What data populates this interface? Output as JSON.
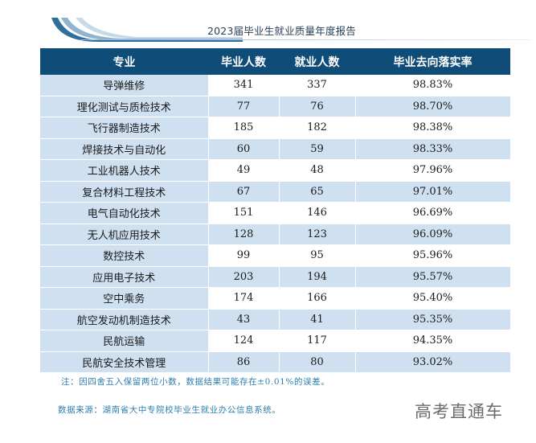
{
  "report": {
    "title": "2023届毕业生就业质量年度报告"
  },
  "table": {
    "headers": [
      "专业",
      "毕业人数",
      "就业人数",
      "毕业去向落实率"
    ],
    "rows": [
      {
        "major": "导弹维修",
        "graduates": "341",
        "employed": "337",
        "rate": "98.83%"
      },
      {
        "major": "理化测试与质检技术",
        "graduates": "77",
        "employed": "76",
        "rate": "98.70%"
      },
      {
        "major": "飞行器制造技术",
        "graduates": "185",
        "employed": "182",
        "rate": "98.38%"
      },
      {
        "major": "焊接技术与自动化",
        "graduates": "60",
        "employed": "59",
        "rate": "98.33%"
      },
      {
        "major": "工业机器人技术",
        "graduates": "49",
        "employed": "48",
        "rate": "97.96%"
      },
      {
        "major": "复合材料工程技术",
        "graduates": "67",
        "employed": "65",
        "rate": "97.01%"
      },
      {
        "major": "电气自动化技术",
        "graduates": "151",
        "employed": "146",
        "rate": "96.69%"
      },
      {
        "major": "无人机应用技术",
        "graduates": "128",
        "employed": "123",
        "rate": "96.09%"
      },
      {
        "major": "数控技术",
        "graduates": "99",
        "employed": "95",
        "rate": "95.96%"
      },
      {
        "major": "应用电子技术",
        "graduates": "203",
        "employed": "194",
        "rate": "95.57%"
      },
      {
        "major": "空中乘务",
        "graduates": "174",
        "employed": "166",
        "rate": "95.40%"
      },
      {
        "major": "航空发动机制造技术",
        "graduates": "43",
        "employed": "41",
        "rate": "95.35%"
      },
      {
        "major": "民航运输",
        "graduates": "124",
        "employed": "117",
        "rate": "94.35%"
      },
      {
        "major": "民航安全技术管理",
        "graduates": "86",
        "employed": "80",
        "rate": "93.02%"
      }
    ]
  },
  "footnotes": {
    "note": "注：因四舍五入保留两位小数，数据结果可能存在±0.01%的误差。",
    "source": "数据来源：湖南省大中专院校毕业生就业办公信息系统。"
  },
  "watermark": "高考直通车",
  "colors": {
    "header_bg": "#0f4c78",
    "row_alt_bg": "#cfe0f1",
    "note_text": "#2d7fb0"
  }
}
